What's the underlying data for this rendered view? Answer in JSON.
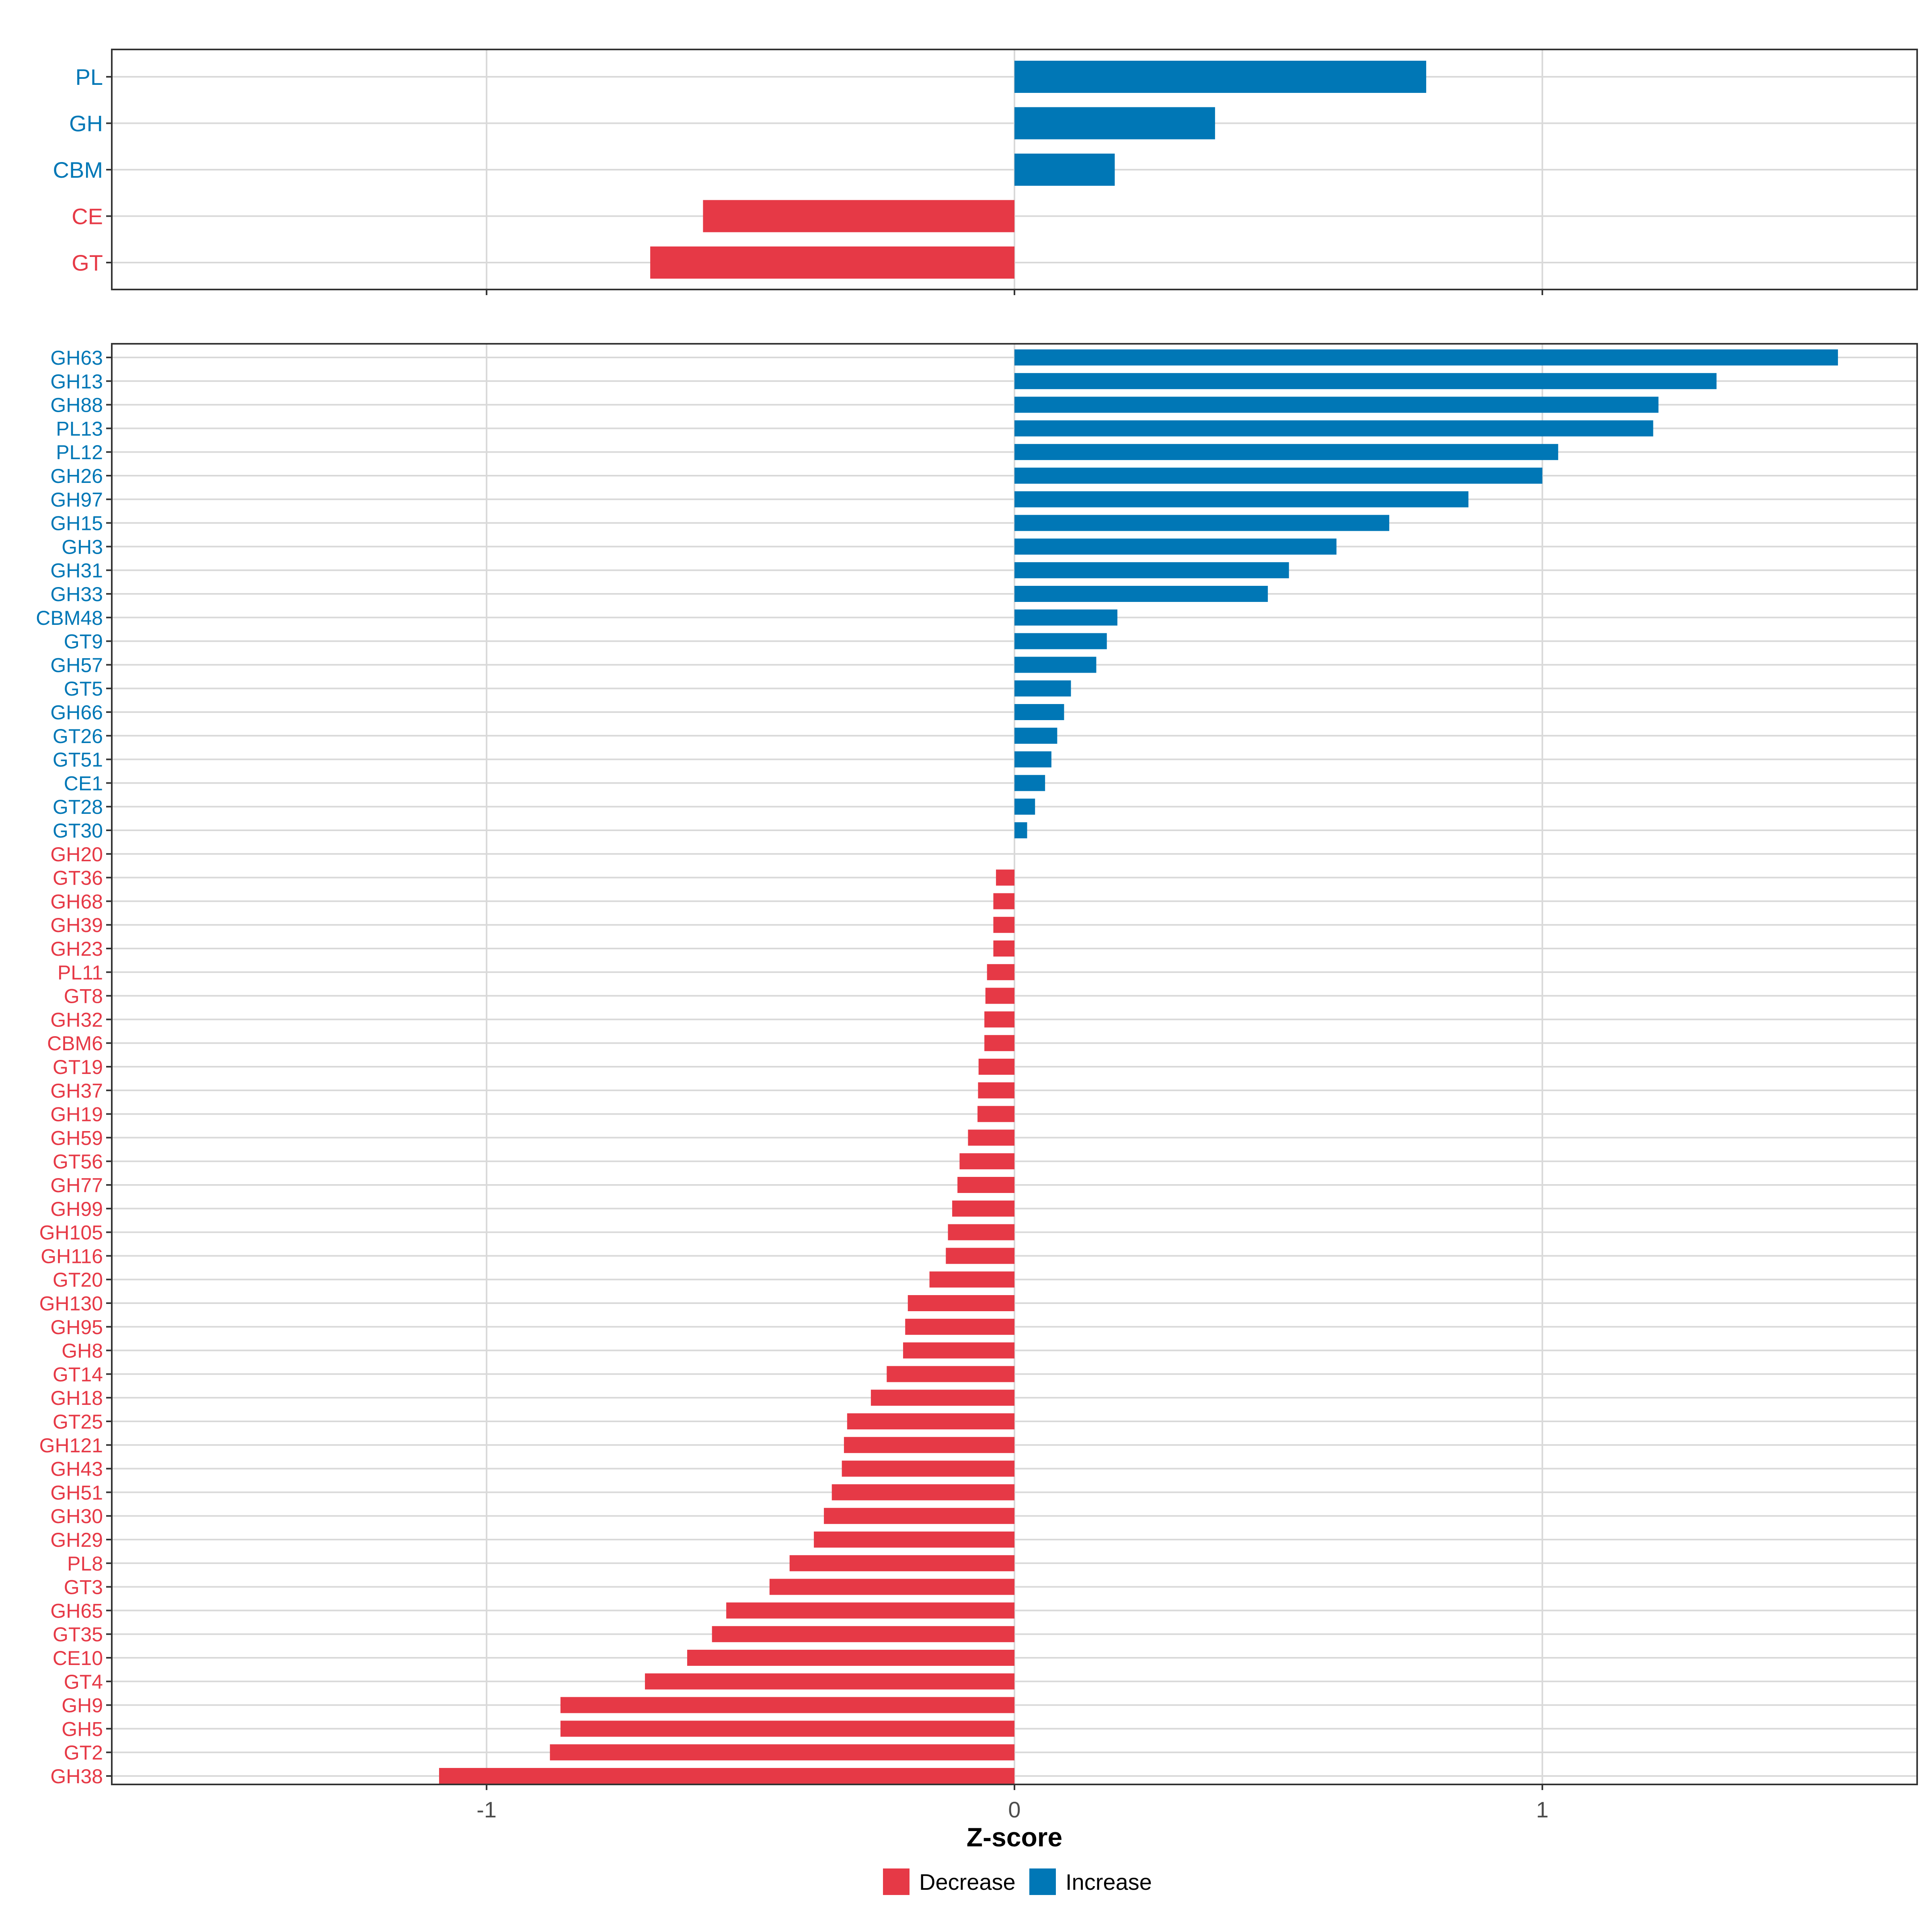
{
  "colors": {
    "decrease": "#E63946",
    "increase": "#0077B6",
    "grid": "#D9D9D9",
    "panel_border": "#333333",
    "text": "#000000",
    "axis_text": "#4D4D4D"
  },
  "chart_data": [
    {
      "type": "bar",
      "orientation": "horizontal",
      "panel": "top",
      "categories": [
        "PL",
        "GH",
        "CBM",
        "CE",
        "GT"
      ],
      "values": [
        0.78,
        0.38,
        0.19,
        -0.59,
        -0.69
      ],
      "xlim": [
        -1.71,
        1.71
      ],
      "xticks": [
        -1,
        0,
        1
      ],
      "grid": true
    },
    {
      "type": "bar",
      "orientation": "horizontal",
      "panel": "bottom",
      "categories": [
        "GH63",
        "GH13",
        "GH88",
        "PL13",
        "PL12",
        "GH26",
        "GH97",
        "GH15",
        "GH3",
        "GH31",
        "GH33",
        "CBM48",
        "GT9",
        "GH57",
        "GT5",
        "GH66",
        "GT26",
        "GT51",
        "CE1",
        "GT28",
        "GT30",
        "GH20",
        "GT36",
        "GH68",
        "GH39",
        "GH23",
        "PL11",
        "GT8",
        "GH32",
        "CBM6",
        "GT19",
        "GH37",
        "GH19",
        "GH59",
        "GT56",
        "GH77",
        "GH99",
        "GH105",
        "GH116",
        "GT20",
        "GH130",
        "GH95",
        "GH8",
        "GT14",
        "GH18",
        "GT25",
        "GH121",
        "GH43",
        "GH51",
        "GH30",
        "GH29",
        "PL8",
        "GT3",
        "GH65",
        "GT35",
        "CE10",
        "GT4",
        "GH9",
        "GH5",
        "GT2",
        "GH38"
      ],
      "values": [
        1.56,
        1.33,
        1.22,
        1.21,
        1.03,
        1.0,
        0.86,
        0.71,
        0.61,
        0.52,
        0.48,
        0.195,
        0.175,
        0.155,
        0.107,
        0.094,
        0.081,
        0.07,
        0.058,
        0.039,
        0.024,
        0.0,
        -0.035,
        -0.04,
        -0.04,
        -0.04,
        -0.052,
        -0.055,
        -0.057,
        -0.057,
        -0.068,
        -0.069,
        -0.07,
        -0.088,
        -0.104,
        -0.108,
        -0.118,
        -0.126,
        -0.13,
        -0.161,
        -0.202,
        -0.207,
        -0.211,
        -0.242,
        -0.272,
        -0.317,
        -0.323,
        -0.327,
        -0.346,
        -0.361,
        -0.38,
        -0.426,
        -0.464,
        -0.546,
        -0.573,
        -0.62,
        -0.7,
        -0.86,
        -0.86,
        -0.88,
        -1.09
      ],
      "xlim": [
        -1.71,
        1.71
      ],
      "xticks": [
        -1,
        0,
        1
      ],
      "grid": true
    }
  ],
  "axes": {
    "xlabel": "Z-score",
    "tick_labels": [
      "-1",
      "0",
      "1"
    ]
  },
  "legend": {
    "position": "bottom",
    "items": [
      {
        "label": "Decrease",
        "color_key": "decrease"
      },
      {
        "label": "Increase",
        "color_key": "increase"
      }
    ]
  }
}
